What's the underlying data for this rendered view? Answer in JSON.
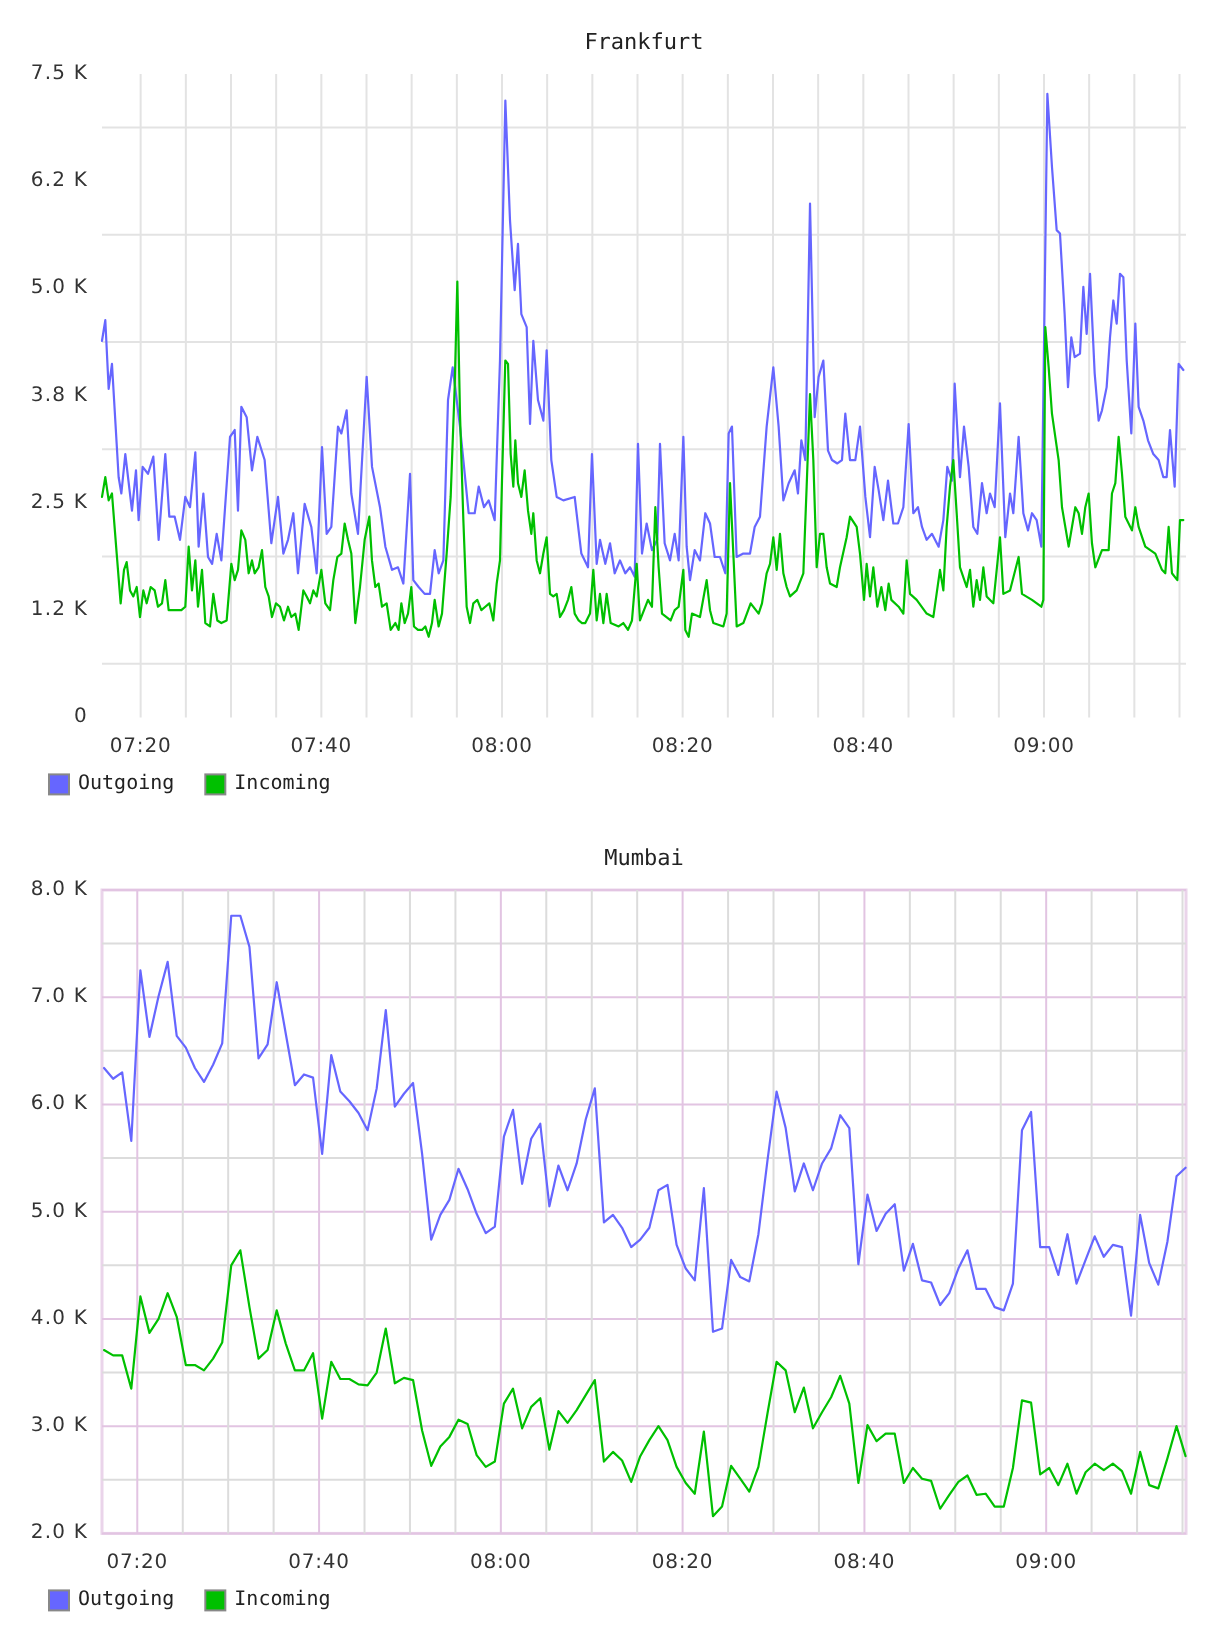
{
  "chart_data": [
    {
      "type": "line",
      "title": "Frankfurt",
      "xlim": [
        7.262,
        9.262
      ],
      "xticks": [
        {
          "value": 7.3333,
          "label": "07:20"
        },
        {
          "value": 7.4167,
          "label": null
        },
        {
          "value": 7.5,
          "label": null
        },
        {
          "value": 7.5833,
          "label": null
        },
        {
          "value": 7.6667,
          "label": "07:40"
        },
        {
          "value": 7.75,
          "label": null
        },
        {
          "value": 7.8333,
          "label": null
        },
        {
          "value": 7.9167,
          "label": null
        },
        {
          "value": 8,
          "label": "08:00"
        },
        {
          "value": 8.0833,
          "label": null
        },
        {
          "value": 8.1667,
          "label": null
        },
        {
          "value": 8.25,
          "label": null
        },
        {
          "value": 8.3333,
          "label": "08:20"
        },
        {
          "value": 8.4167,
          "label": null
        },
        {
          "value": 8.5,
          "label": null
        },
        {
          "value": 8.5833,
          "label": null
        },
        {
          "value": 8.6667,
          "label": "08:40"
        },
        {
          "value": 8.75,
          "label": null
        },
        {
          "value": 8.8333,
          "label": null
        },
        {
          "value": 8.9167,
          "label": null
        },
        {
          "value": 9,
          "label": "09:00"
        },
        {
          "value": 9.0833,
          "label": null
        },
        {
          "value": 9.1667,
          "label": null
        },
        {
          "value": 9.25,
          "label": null
        }
      ],
      "ylim": [
        0,
        7500
      ],
      "yticks": [
        0,
        {
          "value": 625,
          "label": null
        },
        {
          "value": 1250,
          "label": "1.2 K"
        },
        {
          "value": 1875,
          "label": null
        },
        {
          "value": 2500,
          "label": "2.5 K"
        },
        {
          "value": 3125,
          "label": null
        },
        {
          "value": 3750,
          "label": "3.8 K"
        },
        {
          "value": 4375,
          "label": null
        },
        {
          "value": 5000,
          "label": "5.0 K"
        },
        {
          "value": 5625,
          "label": null
        },
        {
          "value": 6250,
          "label": "6.2 K"
        },
        {
          "value": 6875,
          "label": null
        },
        {
          "value": 7500,
          "label": "7.5 K"
        }
      ],
      "grid": true,
      "legend": "bottom left",
      "series": [
        {
          "name": "Outgoing",
          "color": "#6666ff",
          "x": [
            7.262,
            7.2681,
            7.2743,
            7.2804,
            7.2927,
            7.2977,
            7.305,
            7.3173,
            7.3247,
            7.3296,
            7.337,
            7.3469,
            7.3567,
            7.3665,
            7.3788,
            7.3862,
            7.3961,
            7.4059,
            7.4157,
            7.4244,
            7.4342,
            7.4403,
            7.449,
            7.4576,
            7.4652,
            7.4736,
            7.4822,
            7.4982,
            7.5068,
            7.5129,
            7.5191,
            7.5289,
            7.5387,
            7.5486,
            7.5621,
            7.5744,
            7.5867,
            7.5966,
            7.6052,
            7.615,
            7.6236,
            7.6359,
            7.6482,
            7.6581,
            7.6679,
            7.6765,
            7.6851,
            7.6974,
            7.7036,
            7.7134,
            7.722,
            7.7343,
            7.7503,
            7.7602,
            7.7749,
            7.7848,
            7.7971,
            7.8081,
            7.818,
            7.8303,
            7.8364,
            7.8462,
            7.8573,
            7.8672,
            7.8758,
            7.8832,
            7.8918,
            7.9004,
            7.909,
            7.9225,
            7.9385,
            7.9496,
            7.957,
            7.9668,
            7.9754,
            7.9865,
            7.9963,
            8.0062,
            8.0148,
            8.0234,
            8.0295,
            8.0357,
            8.0455,
            8.0517,
            8.0578,
            8.0664,
            8.0763,
            8.0824,
            8.091,
            8.1009,
            8.1132,
            8.1341,
            8.1464,
            8.1587,
            8.166,
            8.1747,
            8.1808,
            8.1906,
            8.1993,
            8.2079,
            8.2177,
            8.2275,
            8.2362,
            8.2448,
            8.2509,
            8.2583,
            8.2669,
            8.2767,
            8.2866,
            8.2915,
            8.3001,
            8.31,
            8.3186,
            8.3259,
            8.3346,
            8.3407,
            8.3469,
            8.3555,
            8.3653,
            8.3751,
            8.3838,
            8.3924,
            8.4022,
            8.412,
            8.4182,
            8.4243,
            8.4329,
            8.4453,
            8.4576,
            8.4662,
            8.476,
            8.4883,
            8.5006,
            8.5104,
            8.5191,
            8.5289,
            8.54,
            8.5461,
            8.5523,
            8.5596,
            8.5683,
            8.5769,
            8.5842,
            8.5929,
            8.6015,
            8.6088,
            8.6187,
            8.6273,
            8.6334,
            8.6421,
            8.6519,
            8.6605,
            8.6704,
            8.679,
            8.6876,
            8.6949,
            8.7036,
            8.7122,
            8.722,
            8.7306,
            8.7405,
            8.7503,
            8.7589,
            8.7675,
            8.7749,
            8.7835,
            8.7933,
            8.8056,
            8.8143,
            8.8216,
            8.8302,
            8.8352,
            8.845,
            8.8524,
            8.861,
            8.8696,
            8.877,
            8.8856,
            8.8942,
            8.9004,
            8.909,
            8.9188,
            8.9286,
            8.9373,
            8.9434,
            8.9532,
            8.9619,
            8.9705,
            8.9778,
            8.9865,
            8.9951,
            9.0062,
            9.0148,
            9.0234,
            9.0295,
            9.0381,
            9.0443,
            9.0504,
            9.0566,
            9.0664,
            9.0726,
            9.0787,
            9.0849,
            9.0935,
            9.1008,
            9.107,
            9.1156,
            9.1218,
            9.1279,
            9.1341,
            9.1402,
            9.1464,
            9.1526,
            9.1611,
            9.1685,
            9.1746,
            9.1833,
            9.1919,
            9.2017,
            9.2115,
            9.2202,
            9.2263,
            9.2325,
            9.2411,
            9.2484,
            9.2571
          ],
          "values": [
            4390,
            4630,
            3830,
            4120,
            2800,
            2610,
            3070,
            2410,
            2880,
            2300,
            2920,
            2840,
            3040,
            2070,
            3070,
            2340,
            2340,
            2070,
            2570,
            2450,
            3090,
            1990,
            2610,
            1870,
            1790,
            2140,
            1830,
            3270,
            3350,
            2410,
            3620,
            3500,
            2880,
            3270,
            3000,
            2030,
            2570,
            1910,
            2070,
            2380,
            1680,
            2490,
            2220,
            1680,
            3150,
            2140,
            2220,
            3390,
            3310,
            3580,
            2610,
            2140,
            3970,
            2920,
            2450,
            1990,
            1720,
            1750,
            1560,
            2840,
            1600,
            1520,
            1440,
            1440,
            1950,
            1680,
            1830,
            3700,
            4080,
            3390,
            2380,
            2380,
            2690,
            2450,
            2530,
            2300,
            4160,
            7190,
            5790,
            4980,
            5520,
            4700,
            4550,
            3420,
            4390,
            3700,
            3460,
            4280,
            3000,
            2570,
            2530,
            2570,
            1910,
            1750,
            3070,
            1790,
            2070,
            1790,
            2030,
            1680,
            1830,
            1680,
            1750,
            1640,
            3190,
            1910,
            2260,
            1950,
            2070,
            3190,
            2030,
            1830,
            2140,
            1830,
            3270,
            1990,
            1600,
            1950,
            1830,
            2380,
            2260,
            1870,
            1870,
            1680,
            3310,
            3390,
            1870,
            1910,
            1910,
            2220,
            2340,
            3390,
            4080,
            3390,
            2530,
            2730,
            2880,
            2610,
            3230,
            3000,
            5990,
            3500,
            3970,
            4160,
            3110,
            3000,
            2960,
            3000,
            3540,
            3000,
            3000,
            3390,
            2570,
            2100,
            2920,
            2650,
            2300,
            2760,
            2260,
            2260,
            2450,
            3420,
            2380,
            2450,
            2220,
            2070,
            2140,
            1990,
            2300,
            2920,
            2760,
            3890,
            2800,
            3390,
            2920,
            2220,
            2140,
            2730,
            2380,
            2610,
            2450,
            3660,
            2100,
            2610,
            2380,
            3270,
            2380,
            2180,
            2380,
            2300,
            1990,
            7270,
            6410,
            5680,
            5640,
            4700,
            3850,
            4430,
            4200,
            4240,
            5020,
            4470,
            5170,
            4010,
            3460,
            3580,
            3850,
            4430,
            4860,
            4590,
            5170,
            5130,
            4160,
            3310,
            4590,
            3620,
            3460,
            3230,
            3070,
            3000,
            2800,
            2800,
            3350,
            2690,
            4120,
            4050
          ]
        },
        {
          "name": "Incoming",
          "color": "#00c000",
          "x": [
            7.262,
            7.2681,
            7.2743,
            7.2804,
            7.2891,
            7.2964,
            7.3026,
            7.3075,
            7.3137,
            7.3198,
            7.326,
            7.3321,
            7.3383,
            7.3444,
            7.3518,
            7.3592,
            7.3653,
            7.3727,
            7.3788,
            7.385,
            7.3936,
            7.401,
            7.4084,
            7.4157,
            7.4219,
            7.428,
            7.4342,
            7.4391,
            7.4465,
            7.4526,
            7.4613,
            7.4674,
            7.4748,
            7.4822,
            7.492,
            7.5006,
            7.5068,
            7.5129,
            7.5191,
            7.5264,
            7.5326,
            7.5387,
            7.5437,
            7.551,
            7.5572,
            7.5633,
            7.5695,
            7.5756,
            7.583,
            7.5904,
            7.5978,
            7.6052,
            7.6113,
            7.6187,
            7.6248,
            7.6335,
            7.6396,
            7.6458,
            7.6519,
            7.6581,
            7.6667,
            7.674,
            7.6827,
            7.6888,
            7.6962,
            7.7036,
            7.7097,
            7.7159,
            7.722,
            7.7294,
            7.738,
            7.7466,
            7.7552,
            7.7601,
            7.7663,
            7.7724,
            7.7786,
            7.7872,
            7.7946,
            7.8032,
            7.8093,
            7.8143,
            7.8204,
            7.8266,
            7.8327,
            7.8376,
            7.845,
            7.8524,
            7.8585,
            7.8647,
            7.8708,
            7.8758,
            7.8831,
            7.8893,
            7.8979,
            7.9053,
            7.9127,
            7.9176,
            7.9225,
            7.9287,
            7.9348,
            7.941,
            7.9471,
            7.9545,
            7.9619,
            7.9692,
            7.9766,
            7.984,
            7.9902,
            7.9963,
            8,
            8.0061,
            8.0111,
            8.016,
            8.0209,
            8.0246,
            8.0295,
            8.0357,
            8.0418,
            8.048,
            8.0541,
            8.0578,
            8.064,
            8.0701,
            8.0763,
            8.0824,
            8.0886,
            8.0947,
            8.1009,
            8.107,
            8.1144,
            8.1218,
            8.1279,
            8.1341,
            8.1414,
            8.1476,
            8.1537,
            8.1624,
            8.1685,
            8.1747,
            8.1808,
            8.187,
            8.1931,
            8.2005,
            8.2152,
            8.2239,
            8.2325,
            8.2398,
            8.2485,
            8.2546,
            8.2694,
            8.2767,
            8.2829,
            8.289,
            8.2952,
            8.3112,
            8.3186,
            8.3259,
            8.3346,
            8.3382,
            8.3444,
            8.3505,
            8.3653,
            8.3776,
            8.3838,
            8.3899,
            8.4084,
            8.4145,
            8.4207,
            8.4268,
            8.433,
            8.4453,
            8.4588,
            8.4735,
            8.4797,
            8.4883,
            8.4945,
            8.5006,
            8.5068,
            8.5129,
            8.5191,
            8.5252,
            8.5314,
            8.5437,
            8.556,
            8.5621,
            8.5683,
            8.5744,
            8.5806,
            8.5867,
            8.5929,
            8.599,
            8.6052,
            8.6175,
            8.6236,
            8.6359,
            8.6421,
            8.6544,
            8.6605,
            8.6679,
            8.6728,
            8.679,
            8.6851,
            8.6925,
            8.6999,
            8.7072,
            8.7134,
            8.7183,
            8.7318,
            8.7405,
            8.7466,
            8.7528,
            8.7651,
            8.7835,
            8.7958,
            8.8081,
            8.8143,
            8.8204,
            8.8266,
            8.8327,
            8.8389,
            8.845,
            8.8573,
            8.8635,
            8.8696,
            8.8758,
            8.8819,
            8.8881,
            8.8942,
            8.9065,
            8.9188,
            8.925,
            8.9373,
            8.9532,
            8.9594,
            8.9778,
            8.9951,
            8.9988,
            9.0024,
            9.0086,
            9.0147,
            9.027,
            9.0332,
            9.0455,
            9.0516,
            9.0578,
            9.0639,
            9.0701,
            9.0762,
            9.0824,
            9.0885,
            9.0947,
            9.107,
            9.1193,
            9.1254,
            9.1316,
            9.1377,
            9.1439,
            9.15,
            9.1623,
            9.1685,
            9.1746,
            9.1869,
            9.2054,
            9.2177,
            9.2238,
            9.23,
            9.2361,
            9.246,
            9.2509,
            9.2571
          ],
          "values": [
            2570,
            2800,
            2530,
            2610,
            1910,
            1330,
            1720,
            1810,
            1480,
            1410,
            1520,
            1170,
            1480,
            1330,
            1520,
            1480,
            1290,
            1330,
            1600,
            1250,
            1250,
            1250,
            1250,
            1290,
            1990,
            1480,
            1830,
            1290,
            1720,
            1100,
            1060,
            1440,
            1130,
            1100,
            1130,
            1790,
            1600,
            1720,
            2180,
            2070,
            1680,
            1830,
            1680,
            1750,
            1950,
            1520,
            1410,
            1170,
            1330,
            1290,
            1130,
            1290,
            1170,
            1210,
            1020,
            1480,
            1410,
            1330,
            1480,
            1410,
            1720,
            1330,
            1250,
            1600,
            1870,
            1910,
            2260,
            2070,
            1910,
            1100,
            1520,
            2070,
            2340,
            1830,
            1520,
            1560,
            1290,
            1330,
            1020,
            1100,
            1020,
            1330,
            1100,
            1210,
            1520,
            1060,
            1020,
            1020,
            1060,
            940,
            1100,
            1370,
            1060,
            1210,
            1910,
            2570,
            3850,
            5080,
            3540,
            2300,
            1290,
            1100,
            1330,
            1370,
            1250,
            1290,
            1330,
            1130,
            1560,
            1830,
            2760,
            4160,
            4120,
            3070,
            2690,
            3230,
            2730,
            2570,
            2880,
            2410,
            2140,
            2380,
            1830,
            1680,
            1910,
            2100,
            1440,
            1410,
            1440,
            1170,
            1250,
            1370,
            1520,
            1210,
            1130,
            1100,
            1100,
            1210,
            1720,
            1130,
            1440,
            1100,
            1440,
            1100,
            1060,
            1100,
            1020,
            1130,
            1790,
            1130,
            1370,
            1290,
            2450,
            1750,
            1210,
            1130,
            1250,
            1290,
            1720,
            1020,
            940,
            1210,
            1170,
            1600,
            1250,
            1100,
            1060,
            1210,
            2730,
            1910,
            1060,
            1100,
            1330,
            1210,
            1330,
            1680,
            1790,
            2100,
            1720,
            2140,
            1680,
            1520,
            1410,
            1480,
            1680,
            2690,
            3770,
            3000,
            1750,
            2140,
            2140,
            1750,
            1560,
            1520,
            1750,
            2100,
            2340,
            2220,
            1910,
            1370,
            1790,
            1410,
            1750,
            1290,
            1520,
            1250,
            1560,
            1370,
            1290,
            1210,
            1830,
            1440,
            1370,
            1210,
            1170,
            1720,
            1480,
            2220,
            2690,
            3000,
            2380,
            1750,
            1520,
            1720,
            1290,
            1600,
            1370,
            1750,
            1410,
            1330,
            2100,
            1440,
            1480,
            1870,
            1440,
            1370,
            1290,
            1370,
            4550,
            4080,
            3540,
            3000,
            2450,
            1990,
            2220,
            2450,
            2380,
            2140,
            2450,
            2610,
            2030,
            1750,
            1950,
            1950,
            2610,
            2730,
            3270,
            2840,
            2340,
            2180,
            2450,
            2220,
            1990,
            1910,
            1720,
            1680,
            2220,
            1680,
            1600,
            2300,
            2300
          ]
        }
      ]
    },
    {
      "type": "line",
      "title": "Mumbai",
      "xlim": [
        7.2686,
        9.2564
      ],
      "xticks": [
        {
          "value": 7.3333,
          "label": "07:20"
        },
        {
          "value": 7.4167,
          "label": null
        },
        {
          "value": 7.5,
          "label": null
        },
        {
          "value": 7.5833,
          "label": null
        },
        {
          "value": 7.6667,
          "label": "07:40"
        },
        {
          "value": 7.75,
          "label": null
        },
        {
          "value": 7.8333,
          "label": null
        },
        {
          "value": 7.9167,
          "label": null
        },
        {
          "value": 8,
          "label": "08:00"
        },
        {
          "value": 8.0833,
          "label": null
        },
        {
          "value": 8.1667,
          "label": null
        },
        {
          "value": 8.25,
          "label": null
        },
        {
          "value": 8.3333,
          "label": "08:20"
        },
        {
          "value": 8.4167,
          "label": null
        },
        {
          "value": 8.5,
          "label": null
        },
        {
          "value": 8.5833,
          "label": null
        },
        {
          "value": 8.6667,
          "label": "08:40"
        },
        {
          "value": 8.75,
          "label": null
        },
        {
          "value": 8.8333,
          "label": null
        },
        {
          "value": 8.9167,
          "label": null
        },
        {
          "value": 9,
          "label": "09:00"
        },
        {
          "value": 9.0833,
          "label": null
        },
        {
          "value": 9.1667,
          "label": null
        },
        {
          "value": 9.25,
          "label": null
        }
      ],
      "ylim": [
        2000,
        8000
      ],
      "yticks": [
        {
          "value": 2000,
          "label": "2.0 K"
        },
        {
          "value": 2500,
          "label": null
        },
        {
          "value": 3000,
          "label": "3.0 K"
        },
        {
          "value": 3500,
          "label": null
        },
        {
          "value": 4000,
          "label": "4.0 K"
        },
        {
          "value": 4500,
          "label": null
        },
        {
          "value": 5000,
          "label": "5.0 K"
        },
        {
          "value": 5500,
          "label": null
        },
        {
          "value": 6000,
          "label": "6.0 K"
        },
        {
          "value": 6500,
          "label": null
        },
        {
          "value": 7000,
          "label": "7.0 K"
        },
        {
          "value": 7500,
          "label": null
        },
        {
          "value": 8000,
          "label": "8.0 K"
        }
      ],
      "grid": true,
      "legend": "bottom left",
      "x": [
        7.2723,
        7.289,
        7.3056,
        7.3223,
        7.339,
        7.3556,
        7.3723,
        7.389,
        7.4056,
        7.4223,
        7.439,
        7.4556,
        7.4723,
        7.489,
        7.5056,
        7.5223,
        7.539,
        7.5556,
        7.5723,
        7.589,
        7.6056,
        7.6223,
        7.639,
        7.6556,
        7.6723,
        7.689,
        7.7056,
        7.7223,
        7.739,
        7.7556,
        7.7723,
        7.789,
        7.8056,
        7.8223,
        7.839,
        7.8556,
        7.8723,
        7.889,
        7.9056,
        7.9223,
        7.939,
        7.9556,
        7.9723,
        7.989,
        8.0056,
        8.0223,
        8.039,
        8.0556,
        8.0723,
        8.089,
        8.1056,
        8.1223,
        8.139,
        8.1556,
        8.1723,
        8.189,
        8.2056,
        8.2223,
        8.239,
        8.2556,
        8.2723,
        8.289,
        8.3056,
        8.3223,
        8.339,
        8.3556,
        8.3723,
        8.389,
        8.4056,
        8.4223,
        8.439,
        8.4556,
        8.4723,
        8.489,
        8.5056,
        8.5223,
        8.539,
        8.5556,
        8.5723,
        8.589,
        8.6056,
        8.6223,
        8.639,
        8.6556,
        8.6723,
        8.689,
        8.7056,
        8.7223,
        8.739,
        8.7556,
        8.7723,
        8.789,
        8.8056,
        8.8223,
        8.839,
        8.8556,
        8.8723,
        8.889,
        8.9056,
        8.9223,
        8.939,
        8.9556,
        8.9723,
        8.989,
        9.0056,
        9.0223,
        9.039,
        9.0556,
        9.0723,
        9.089,
        9.1056,
        9.1223,
        9.139,
        9.1556,
        9.1723,
        9.189,
        9.2056,
        9.2223,
        9.239,
        9.2556
      ],
      "series": [
        {
          "name": "Outgoing",
          "color": "#6666ff",
          "values": [
            6340,
            6240,
            6300,
            5660,
            7250,
            6630,
            7010,
            7330,
            6640,
            6530,
            6340,
            6210,
            6370,
            6570,
            7760,
            7760,
            7470,
            6430,
            6560,
            7140,
            6660,
            6180,
            6280,
            6250,
            5540,
            6460,
            6120,
            6030,
            5920,
            5760,
            6150,
            6880,
            5980,
            6100,
            6200,
            5540,
            4740,
            4970,
            5110,
            5400,
            5210,
            4980,
            4800,
            4860,
            5700,
            5950,
            5260,
            5680,
            5820,
            5050,
            5430,
            5200,
            5450,
            5860,
            6150,
            4900,
            4970,
            4850,
            4670,
            4740,
            4850,
            5200,
            5250,
            4690,
            4470,
            4360,
            5220,
            3880,
            3910,
            4550,
            4390,
            4350,
            4790,
            5480,
            6120,
            5780,
            5190,
            5450,
            5200,
            5450,
            5590,
            5900,
            5780,
            4510,
            5160,
            4820,
            4980,
            5070,
            4450,
            4700,
            4360,
            4340,
            4130,
            4240,
            4470,
            4640,
            4280,
            4280,
            4110,
            4080,
            4330,
            5760,
            5930,
            4670,
            4670,
            4410,
            4790,
            4330,
            4550,
            4770,
            4580,
            4690,
            4670,
            4030,
            4970,
            4520,
            4320,
            4720,
            5330,
            5410
          ]
        },
        {
          "name": "Incoming",
          "color": "#00c000",
          "values": [
            3710,
            3660,
            3660,
            3350,
            4210,
            3870,
            4000,
            4240,
            4020,
            3570,
            3570,
            3520,
            3630,
            3780,
            4500,
            4640,
            4110,
            3630,
            3710,
            4080,
            3770,
            3520,
            3520,
            3680,
            3070,
            3600,
            3440,
            3440,
            3390,
            3380,
            3500,
            3910,
            3400,
            3450,
            3430,
            2960,
            2630,
            2810,
            2900,
            3060,
            3020,
            2730,
            2620,
            2670,
            3210,
            3350,
            2980,
            3180,
            3260,
            2780,
            3140,
            3030,
            3150,
            3290,
            3430,
            2670,
            2760,
            2680,
            2480,
            2720,
            2870,
            3000,
            2870,
            2620,
            2470,
            2370,
            2950,
            2160,
            2250,
            2630,
            2510,
            2390,
            2620,
            3120,
            3600,
            3520,
            3130,
            3360,
            2980,
            3130,
            3270,
            3470,
            3210,
            2470,
            3010,
            2860,
            2930,
            2930,
            2470,
            2610,
            2510,
            2490,
            2230,
            2360,
            2480,
            2540,
            2360,
            2370,
            2250,
            2250,
            2610,
            3240,
            3220,
            2550,
            2610,
            2450,
            2650,
            2370,
            2570,
            2650,
            2590,
            2650,
            2580,
            2370,
            2760,
            2450,
            2420,
            2700,
            3000,
            2720
          ]
        }
      ]
    }
  ]
}
